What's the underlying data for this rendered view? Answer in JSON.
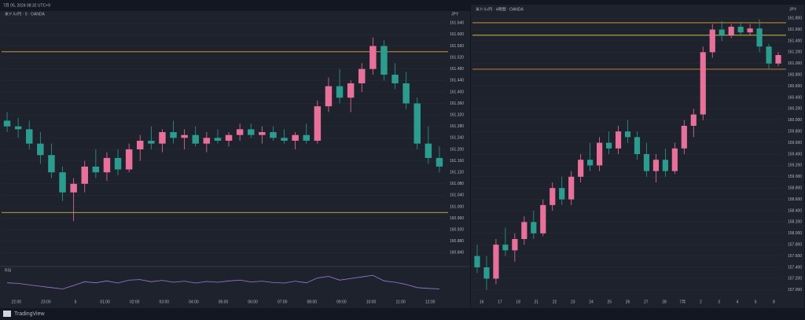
{
  "header": {
    "text": "7月 05, 2024 08:32 UTC+9"
  },
  "footer": {
    "brand": "TradingView"
  },
  "chart_data": [
    {
      "type": "candlestick",
      "title": "米ドル/円 · 5 · OANDA",
      "currency": "JPY",
      "up_color": "#e8709a",
      "down_color": "#2a9d8f",
      "ylim": [
        160.8,
        161.66
      ],
      "yticks": [
        {
          "value": 160.84,
          "label": "160.840"
        },
        {
          "value": 160.88,
          "label": "160.880"
        },
        {
          "value": 160.92,
          "label": "160.920"
        },
        {
          "value": 160.96,
          "label": "160.960"
        },
        {
          "value": 161.0,
          "label": "161.000"
        },
        {
          "value": 161.04,
          "label": "161.040"
        },
        {
          "value": 161.08,
          "label": "161.080"
        },
        {
          "value": 161.12,
          "label": "161.120"
        },
        {
          "value": 161.16,
          "label": "161.160"
        },
        {
          "value": 161.2,
          "label": "161.200"
        },
        {
          "value": 161.24,
          "label": "161.240"
        },
        {
          "value": 161.28,
          "label": "161.280"
        },
        {
          "value": 161.32,
          "label": "161.320"
        },
        {
          "value": 161.36,
          "label": "161.360"
        },
        {
          "value": 161.4,
          "label": "161.400"
        },
        {
          "value": 161.44,
          "label": "161.440"
        },
        {
          "value": 161.48,
          "label": "161.480"
        },
        {
          "value": 161.52,
          "label": "161.520"
        },
        {
          "value": 161.56,
          "label": "161.560"
        },
        {
          "value": 161.6,
          "label": "161.600"
        },
        {
          "value": 161.64,
          "label": "161.640"
        }
      ],
      "xlabels": [
        "22:00",
        "23:00",
        "5",
        "01:00",
        "02:00",
        "03:00",
        "04:00",
        "05:00",
        "06:00",
        "07:00",
        "08:00",
        "09:00",
        "10:00",
        "11:00",
        "12:00"
      ],
      "levels": [
        {
          "value": 161.54,
          "color": "#f0a030"
        },
        {
          "value": 160.98,
          "color": "#e8d040"
        }
      ],
      "ohlc": [
        [
          161.3,
          161.33,
          161.26,
          161.28
        ],
        [
          161.28,
          161.31,
          161.24,
          161.27
        ],
        [
          161.27,
          161.3,
          161.2,
          161.22
        ],
        [
          161.22,
          161.26,
          161.15,
          161.18
        ],
        [
          161.18,
          161.22,
          161.1,
          161.12
        ],
        [
          161.12,
          161.14,
          161.02,
          161.05
        ],
        [
          161.05,
          161.1,
          160.95,
          161.08
        ],
        [
          161.08,
          161.16,
          161.05,
          161.14
        ],
        [
          161.14,
          161.2,
          161.1,
          161.12
        ],
        [
          161.12,
          161.19,
          161.09,
          161.17
        ],
        [
          161.17,
          161.2,
          161.11,
          161.13
        ],
        [
          161.13,
          161.22,
          161.12,
          161.2
        ],
        [
          161.2,
          161.25,
          161.16,
          161.23
        ],
        [
          161.23,
          161.28,
          161.2,
          161.22
        ],
        [
          161.22,
          161.27,
          161.19,
          161.26
        ],
        [
          161.26,
          161.3,
          161.22,
          161.24
        ],
        [
          161.24,
          161.27,
          161.2,
          161.25
        ],
        [
          161.25,
          161.28,
          161.21,
          161.22
        ],
        [
          161.22,
          161.26,
          161.19,
          161.24
        ],
        [
          161.24,
          161.27,
          161.22,
          161.23
        ],
        [
          161.23,
          161.26,
          161.21,
          161.25
        ],
        [
          161.25,
          161.29,
          161.23,
          161.27
        ],
        [
          161.27,
          161.29,
          161.24,
          161.25
        ],
        [
          161.25,
          161.28,
          161.22,
          161.26
        ],
        [
          161.26,
          161.28,
          161.23,
          161.24
        ],
        [
          161.24,
          161.27,
          161.22,
          161.23
        ],
        [
          161.23,
          161.26,
          161.2,
          161.25
        ],
        [
          161.25,
          161.29,
          161.22,
          161.23
        ],
        [
          161.23,
          161.37,
          161.22,
          161.35
        ],
        [
          161.35,
          161.45,
          161.33,
          161.42
        ],
        [
          161.42,
          161.48,
          161.36,
          161.38
        ],
        [
          161.38,
          161.44,
          161.33,
          161.43
        ],
        [
          161.43,
          161.5,
          161.4,
          161.48
        ],
        [
          161.48,
          161.59,
          161.46,
          161.56
        ],
        [
          161.56,
          161.58,
          161.44,
          161.46
        ],
        [
          161.46,
          161.5,
          161.41,
          161.43
        ],
        [
          161.43,
          161.47,
          161.34,
          161.36
        ],
        [
          161.36,
          161.38,
          161.2,
          161.22
        ],
        [
          161.22,
          161.28,
          161.15,
          161.17
        ],
        [
          161.17,
          161.21,
          161.12,
          161.14
        ]
      ],
      "indicator": {
        "name": "RSI",
        "color": "#9c7bd4",
        "ylim": [
          0,
          100
        ],
        "values": [
          48,
          46,
          40,
          35,
          30,
          25,
          38,
          52,
          48,
          55,
          47,
          58,
          60,
          52,
          57,
          50,
          54,
          47,
          53,
          50,
          55,
          58,
          51,
          54,
          49,
          47,
          54,
          48,
          66,
          72,
          58,
          64,
          70,
          76,
          55,
          50,
          42,
          30,
          27,
          25
        ]
      }
    },
    {
      "type": "candlestick",
      "title": "米ドル/円 · 4時間 · OANDA",
      "currency": "JPY",
      "up_color": "#e8709a",
      "down_color": "#2a9d8f",
      "ylim": [
        156.9,
        161.9
      ],
      "yticks": [
        {
          "value": 157.0,
          "label": "157.000"
        },
        {
          "value": 157.2,
          "label": "157.200"
        },
        {
          "value": 157.4,
          "label": "157.400"
        },
        {
          "value": 157.6,
          "label": "157.600"
        },
        {
          "value": 157.8,
          "label": "157.800"
        },
        {
          "value": 158.0,
          "label": "158.000"
        },
        {
          "value": 158.2,
          "label": "158.200"
        },
        {
          "value": 158.4,
          "label": "158.400"
        },
        {
          "value": 158.6,
          "label": "158.600"
        },
        {
          "value": 158.8,
          "label": "158.800"
        },
        {
          "value": 159.0,
          "label": "159.000"
        },
        {
          "value": 159.2,
          "label": "159.200"
        },
        {
          "value": 159.4,
          "label": "159.400"
        },
        {
          "value": 159.6,
          "label": "159.600"
        },
        {
          "value": 159.8,
          "label": "159.800"
        },
        {
          "value": 160.0,
          "label": "160.000"
        },
        {
          "value": 160.2,
          "label": "160.200"
        },
        {
          "value": 160.4,
          "label": "160.400"
        },
        {
          "value": 160.6,
          "label": "160.600"
        },
        {
          "value": 160.8,
          "label": "160.800"
        },
        {
          "value": 161.0,
          "label": "161.000"
        },
        {
          "value": 161.2,
          "label": "161.200"
        },
        {
          "value": 161.4,
          "label": "161.400"
        },
        {
          "value": 161.6,
          "label": "161.600"
        },
        {
          "value": 161.8,
          "label": "161.800"
        }
      ],
      "xlabels": [
        "16",
        "17",
        "18",
        "21",
        "22",
        "23",
        "24",
        "25",
        "26",
        "27",
        "28",
        "7月",
        "2",
        "3",
        "4",
        "5",
        "8"
      ],
      "levels": [
        {
          "value": 161.72,
          "color": "#f0a030"
        },
        {
          "value": 161.5,
          "color": "#e8d040"
        },
        {
          "value": 160.9,
          "color": "#f0a030"
        }
      ],
      "ohlc": [
        [
          157.6,
          157.8,
          157.3,
          157.4
        ],
        [
          157.4,
          157.6,
          157.0,
          157.2
        ],
        [
          157.2,
          157.9,
          157.1,
          157.8
        ],
        [
          157.8,
          158.1,
          157.6,
          157.7
        ],
        [
          157.7,
          158.0,
          157.5,
          157.9
        ],
        [
          157.9,
          158.3,
          157.8,
          158.2
        ],
        [
          158.2,
          158.4,
          157.9,
          158.0
        ],
        [
          158.0,
          158.6,
          157.95,
          158.5
        ],
        [
          158.5,
          158.9,
          158.4,
          158.8
        ],
        [
          158.8,
          159.0,
          158.5,
          158.6
        ],
        [
          158.6,
          159.1,
          158.5,
          159.0
        ],
        [
          159.0,
          159.4,
          158.9,
          159.3
        ],
        [
          159.3,
          159.6,
          159.1,
          159.2
        ],
        [
          159.2,
          159.7,
          159.1,
          159.6
        ],
        [
          159.6,
          159.8,
          159.4,
          159.5
        ],
        [
          159.5,
          159.9,
          159.4,
          159.8
        ],
        [
          159.8,
          160.0,
          159.6,
          159.7
        ],
        [
          159.7,
          159.8,
          159.3,
          159.4
        ],
        [
          159.4,
          159.6,
          159.0,
          159.1
        ],
        [
          159.1,
          159.4,
          158.9,
          159.3
        ],
        [
          159.3,
          159.5,
          159.0,
          159.1
        ],
        [
          159.1,
          159.6,
          159.05,
          159.5
        ],
        [
          159.5,
          160.0,
          159.4,
          159.9
        ],
        [
          159.9,
          160.2,
          159.7,
          160.1
        ],
        [
          160.1,
          161.3,
          160.0,
          161.2
        ],
        [
          161.2,
          161.7,
          161.1,
          161.6
        ],
        [
          161.6,
          161.75,
          161.4,
          161.5
        ],
        [
          161.5,
          161.7,
          161.45,
          161.65
        ],
        [
          161.65,
          161.72,
          161.5,
          161.55
        ],
        [
          161.55,
          161.7,
          161.5,
          161.62
        ],
        [
          161.62,
          161.78,
          161.2,
          161.3
        ],
        [
          161.3,
          161.35,
          160.9,
          161.0
        ],
        [
          161.0,
          161.2,
          160.95,
          161.15
        ]
      ]
    }
  ]
}
